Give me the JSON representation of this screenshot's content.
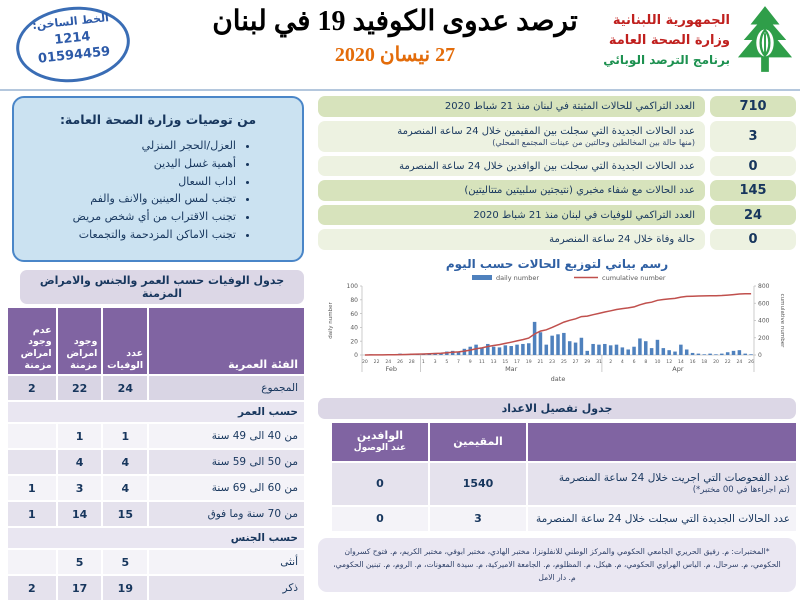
{
  "colors": {
    "accent_blue": "#2e5fa3",
    "box_blue_bg": "#cbe2f1",
    "box_blue_border": "#4a86c8",
    "green_row_dark": "#d7e3bc",
    "green_row_light": "#edf2e1",
    "purple_header": "#8064a2",
    "lavender_bar": "#dcd7e6",
    "navy_text": "#17365d",
    "red_brand": "#c0201e",
    "green_brand": "#1d9150",
    "orange_date": "#e36c0a",
    "bar_blue": "#4f81bd",
    "line_red": "#c0504d"
  },
  "header": {
    "title": "ترصد عدوى الكوفيد 19 في لبنان",
    "date": "27 نيسان 2020",
    "hotline": {
      "label": "الخط الساخن:",
      "number_short": "1214",
      "number_long": "01594459"
    },
    "ministry": {
      "line1": "الجمهورية اللبنانية",
      "line2": "وزارة الصحة العامة",
      "line3": "برنامج الترصد الوبائي",
      "logo": "lebanon-cedar-hand-emblem"
    }
  },
  "recommendations": {
    "title": "من توصيات وزارة الصحة العامة:",
    "items": [
      "العزل/الحجر المنزلي",
      "أهمية غسل اليدين",
      "اداب السعال",
      "تجنب لمس العينين والانف والفم",
      "تجنب الاقتراب من أي شخص مريض",
      "تجنب الاماكن المزدحمة والتجمعات"
    ]
  },
  "stats": [
    {
      "value": "710",
      "label": "العدد التراكمي للحالات المثبتة في لبنان منذ 21 شباط 2020",
      "sub": "",
      "tone": "dark"
    },
    {
      "value": "3",
      "label": "عدد الحالات الجديدة التي سجلت بين المقيمين خلال 24 ساعة المنصرمة",
      "sub": "(منها حالة بين المخالطين وحالتين من عينات المجتمع المحلي)",
      "tone": "light"
    },
    {
      "value": "0",
      "label": "عدد الحالات الجديدة التي سجلت بين الوافدين خلال 24 ساعة المنصرمة",
      "sub": "",
      "tone": "light"
    },
    {
      "value": "145",
      "label": "عدد الحالات مع شفاء مخبري (نتيجتين سلبيتين متتاليتين)",
      "sub": "",
      "tone": "dark"
    },
    {
      "value": "24",
      "label": "العدد التراكمي للوفيات في لبنان منذ 21 شباط 2020",
      "sub": "",
      "tone": "dark"
    },
    {
      "value": "0",
      "label": "حالة وفاة خلال 24 ساعة المنصرمة",
      "sub": "",
      "tone": "light"
    }
  ],
  "deaths_table": {
    "title": "جدول الوفيات حسب العمر والجنس والامراض المزمنة",
    "headers": [
      "الفئة العمرية",
      "عدد الوفيات",
      "وجود امراض مزمنة",
      "عدم وجود امراض مزمنة"
    ],
    "rows": [
      {
        "type": "data",
        "label": "المجموع",
        "deaths": "24",
        "chronic": "22",
        "no_chronic": "2",
        "shade": "dark"
      },
      {
        "type": "section",
        "label": "حسب العمر"
      },
      {
        "type": "data",
        "label": "من 40 الى 49 سنة",
        "deaths": "1",
        "chronic": "1",
        "no_chronic": "",
        "shade": "light"
      },
      {
        "type": "data",
        "label": "من 50 الى 59 سنة",
        "deaths": "4",
        "chronic": "4",
        "no_chronic": "",
        "shade": "mid"
      },
      {
        "type": "data",
        "label": "من 60 الى 69 سنة",
        "deaths": "4",
        "chronic": "3",
        "no_chronic": "1",
        "shade": "light"
      },
      {
        "type": "data",
        "label": "من 70 سنة وما فوق",
        "deaths": "15",
        "chronic": "14",
        "no_chronic": "1",
        "shade": "mid"
      },
      {
        "type": "section",
        "label": "حسب الجنس"
      },
      {
        "type": "data",
        "label": "أنثى",
        "deaths": "5",
        "chronic": "5",
        "no_chronic": "",
        "shade": "light"
      },
      {
        "type": "data",
        "label": "ذكر",
        "deaths": "19",
        "chronic": "17",
        "no_chronic": "2",
        "shade": "mid"
      }
    ]
  },
  "chart_data": {
    "type": "combo",
    "title": "رسم بياني لتوزيع الحالات حسب اليوم",
    "xlabel": "date",
    "ylabel_left": "daily number",
    "ylabel_right": "cumulative number",
    "ylim_left": [
      0,
      100
    ],
    "ylim_right": [
      0,
      800
    ],
    "yticks_left": [
      0,
      20,
      40,
      60,
      80,
      100
    ],
    "yticks_right": [
      0,
      200,
      400,
      600,
      800
    ],
    "legend": [
      "daily number",
      "cumulative number"
    ],
    "grid": false,
    "legend_position": "top-center",
    "colors": {
      "bar": "#4f81bd",
      "line": "#c0504d"
    },
    "month_groups": [
      {
        "label": "Feb",
        "start": 20,
        "count": 10
      },
      {
        "label": "Mar",
        "start": 1,
        "count": 31
      },
      {
        "label": "Apr",
        "start": 1,
        "count": 26
      }
    ],
    "series": [
      {
        "name": "daily number",
        "type": "bar",
        "values": [
          0,
          1,
          0,
          0,
          1,
          1,
          2,
          1,
          2,
          2,
          2,
          2,
          3,
          3,
          5,
          6,
          5,
          9,
          12,
          15,
          10,
          16,
          12,
          11,
          14,
          13,
          15,
          16,
          17,
          48,
          33,
          15,
          28,
          30,
          32,
          20,
          18,
          25,
          6,
          16,
          15,
          16,
          14,
          15,
          11,
          8,
          12,
          24,
          20,
          10,
          22,
          10,
          7,
          5,
          15,
          8,
          3,
          2,
          1,
          2,
          1,
          2,
          4,
          6,
          7,
          2,
          1
        ],
        "note": "estimated from bar heights, Feb 20 - Apr 26"
      },
      {
        "name": "cumulative number",
        "type": "line",
        "derived": "running_sum_of_daily",
        "final_value": 710
      }
    ]
  },
  "details_table": {
    "title": "جدول تفصيل الاعداد",
    "headers": {
      "residents": "المقيمين",
      "arrivals_line1": "الوافدين",
      "arrivals_line2": "عند الوصول"
    },
    "rows": [
      {
        "label": "عدد الفحوصات التي اجريت خلال 24 ساعة المنصرمة",
        "sub": "(تم اجراءها في 00 مختبر*)",
        "residents": "1540",
        "arrivals": "0"
      },
      {
        "label": "عدد الحالات الجديدة التي سجلت خلال 24 ساعة المنصرمة",
        "sub": "",
        "residents": "3",
        "arrivals": "0"
      }
    ]
  },
  "footnote": {
    "text": "*المختبرات: م. رفيق الحريري الجامعي الحكومي والمركز الوطني للانفلونزا، مختبر الهادي، مختبر ابوفي، مختبر الكريم، م. فتوح كسروان الحكومي، م. سرحال، م. الياس الهراوي الحكومي، م. هيكل، م. المظلوم، م. الجامعة الاميركية، م. سيدة المعونات، م. الروم، م. تبنين الحكومي، م. دار الامل"
  }
}
